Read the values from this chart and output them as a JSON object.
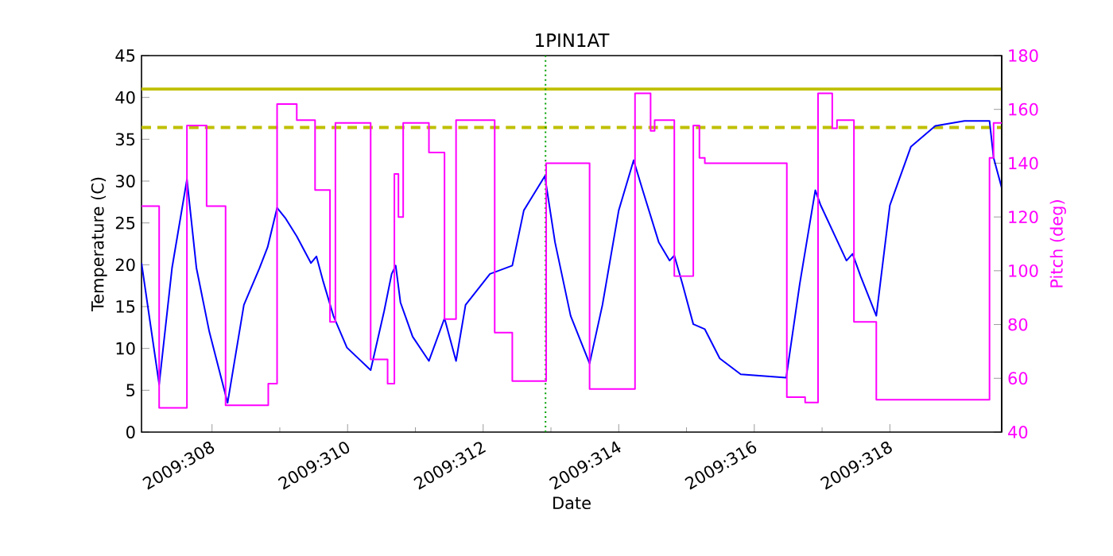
{
  "chart_data": {
    "type": "line",
    "title": "1PIN1AT",
    "xlabel": "Date",
    "ylabel": "Temperature (C)",
    "y2label": "Pitch (deg)",
    "xlim": [
      "2009-11-02T23:02",
      "2009-11-15T15:36"
    ],
    "ylim": [
      0,
      45
    ],
    "y2lim": [
      40,
      180
    ],
    "xticks": [
      {
        "value": "2009-11-04",
        "label": "2009:308"
      },
      {
        "value": "2009-11-06",
        "label": "2009:310"
      },
      {
        "value": "2009-11-08",
        "label": "2009:312"
      },
      {
        "value": "2009-11-10",
        "label": "2009:314"
      },
      {
        "value": "2009-11-12",
        "label": "2009:316"
      },
      {
        "value": "2009-11-14",
        "label": "2009:318"
      }
    ],
    "yticks": [
      0,
      5,
      10,
      15,
      20,
      25,
      30,
      35,
      40,
      45
    ],
    "y2ticks": [
      40,
      60,
      80,
      100,
      120,
      140,
      160,
      180
    ],
    "grid": false,
    "marker": "none",
    "series": [
      {
        "color": "#0000ff",
        "x": [
          "2009-11-02T23:02",
          "2009-11-03T05:17",
          "2009-11-03T09:50",
          "2009-11-03T15:07",
          "2009-11-03T18:29",
          "2009-11-03T23:02",
          "2009-11-04T05:31",
          "2009-11-04T11:17",
          "2009-11-04T16:48",
          "2009-11-04T19:41",
          "2009-11-04T23:02",
          "2009-11-05T01:55",
          "2009-11-05T06:00",
          "2009-11-05T11:02",
          "2009-11-05T12:58",
          "2009-11-05T15:22",
          "2009-11-05T18:58",
          "2009-11-05T23:46",
          "2009-11-06T08:10",
          "2009-11-06T12:58",
          "2009-11-06T15:36",
          "2009-11-06T17:02",
          "2009-11-06T18:43",
          "2009-11-06T23:02",
          "2009-11-07T04:48",
          "2009-11-07T10:19",
          "2009-11-07T14:24",
          "2009-11-07T17:46",
          "2009-11-08T02:24",
          "2009-11-08T10:19",
          "2009-11-08T14:24",
          "2009-11-08T21:50",
          "2009-11-09T01:26",
          "2009-11-09T06:58",
          "2009-11-09T13:41",
          "2009-11-09T18:14",
          "2009-11-10T00:00",
          "2009-11-10T05:17",
          "2009-11-10T08:24",
          "2009-11-10T14:10",
          "2009-11-10T18:00",
          "2009-11-10T19:41",
          "2009-11-10T22:34",
          "2009-11-11T02:24",
          "2009-11-11T06:29",
          "2009-11-11T11:46",
          "2009-11-11T19:12",
          "2009-11-12T11:17",
          "2009-11-12T16:05",
          "2009-11-12T21:36",
          "2009-11-12T23:31",
          "2009-11-13T08:38",
          "2009-11-13T10:48",
          "2009-11-13T13:41",
          "2009-11-13T19:12",
          "2009-11-14T00:00",
          "2009-11-14T07:26",
          "2009-11-14T16:05",
          "2009-11-15T02:24",
          "2009-11-15T11:17",
          "2009-11-15T12:43",
          "2009-11-15T15:36"
        ],
        "values": [
          20.2,
          5.7,
          19.6,
          30.2,
          19.6,
          12,
          3.5,
          15.2,
          19.6,
          22.1,
          26.8,
          25.6,
          23.4,
          20.2,
          21,
          18,
          13.9,
          10.1,
          7.4,
          14.5,
          18.9,
          19.9,
          15.5,
          11.4,
          8.5,
          13.6,
          8.5,
          15.2,
          18.9,
          19.9,
          26.5,
          30.6,
          22.7,
          13.9,
          8.2,
          15.2,
          26.5,
          32.5,
          29,
          22.7,
          20.5,
          21.1,
          17.7,
          12.9,
          12.3,
          8.8,
          6.9,
          6.5,
          17.7,
          28.9,
          27.1,
          20.5,
          21.3,
          18.6,
          13.9,
          27.1,
          34.1,
          36.6,
          37.2,
          37.2,
          32.8,
          29.2
        ]
      },
      {
        "type": "step",
        "axis": "y2",
        "color": "#ff00ff",
        "x": [
          "2009-11-02T23:02",
          "2009-11-03T05:17",
          "2009-11-03T15:07",
          "2009-11-03T22:05",
          "2009-11-04T04:48",
          "2009-11-04T19:55",
          "2009-11-04T23:02",
          "2009-11-05T06:00",
          "2009-11-05T12:29",
          "2009-11-05T17:46",
          "2009-11-05T19:41",
          "2009-11-06T08:10",
          "2009-11-06T14:10",
          "2009-11-06T16:34",
          "2009-11-06T18:00",
          "2009-11-06T19:41",
          "2009-11-07T04:48",
          "2009-11-07T10:19",
          "2009-11-07T14:24",
          "2009-11-08T04:05",
          "2009-11-08T10:19",
          "2009-11-08T22:19",
          "2009-11-09T13:41",
          "2009-11-10T05:46",
          "2009-11-10T11:17",
          "2009-11-10T12:43",
          "2009-11-10T19:41",
          "2009-11-11T02:24",
          "2009-11-11T04:34",
          "2009-11-11T06:29",
          "2009-11-12T11:31",
          "2009-11-12T18:00",
          "2009-11-12T22:34",
          "2009-11-13T03:36",
          "2009-11-13T05:17",
          "2009-11-13T11:17",
          "2009-11-13T19:12",
          "2009-11-15T11:17",
          "2009-11-15T12:43",
          "2009-11-15T15:36"
        ],
        "values": [
          124,
          49,
          154,
          124,
          50,
          58,
          162,
          156,
          130,
          81,
          155,
          67,
          58,
          136,
          120,
          155,
          144,
          82,
          156,
          77,
          59,
          140,
          56,
          166,
          152,
          156,
          98,
          154,
          142,
          140,
          53,
          51,
          166,
          153,
          156,
          81,
          52,
          142,
          155,
          155
        ]
      }
    ],
    "ref_lines": [
      {
        "axis": "y",
        "value": 41,
        "color": "#bfbf00",
        "line_style": "solid"
      },
      {
        "axis": "y",
        "value": 36.4,
        "color": "#bfbf00",
        "line_style": "dashed"
      },
      {
        "axis": "x",
        "value": "2009-11-08T22:05",
        "color": "#00a000",
        "line_style": "dotted"
      }
    ]
  }
}
